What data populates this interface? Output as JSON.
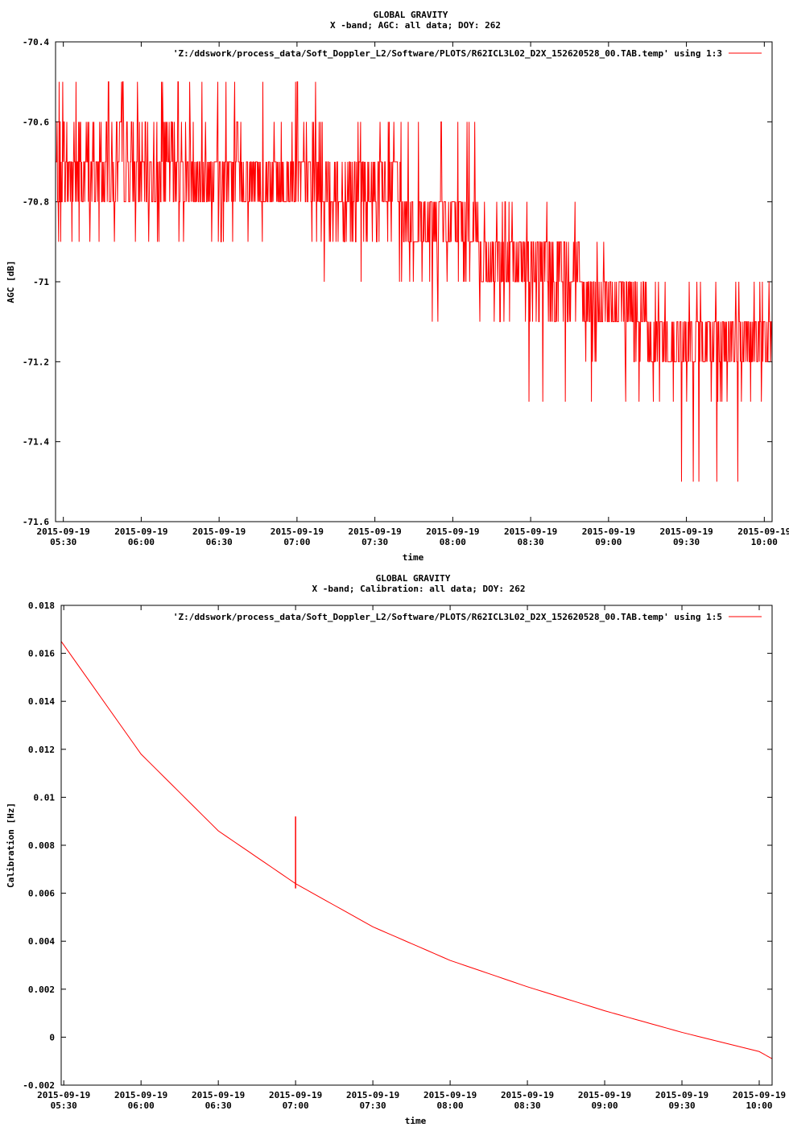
{
  "colors": {
    "series": "#ff0000",
    "axis": "#000000",
    "background": "#ffffff"
  },
  "chart_data": [
    {
      "type": "line",
      "title": "GLOBAL GRAVITY",
      "subtitle": "X -band; AGC: all data; DOY: 262",
      "xlabel": "time",
      "ylabel": "AGC [dB]",
      "ylim": [
        -71.6,
        -70.4
      ],
      "yticks": [
        "-70.4",
        "-70.6",
        "-70.8",
        "-71",
        "-71.2",
        "-71.4",
        "-71.6"
      ],
      "ytick_values": [
        -70.4,
        -70.6,
        -70.8,
        -71.0,
        -71.2,
        -71.4,
        -71.6
      ],
      "xlim": [
        "2015-09-19 05:27",
        "2015-09-19 10:03"
      ],
      "xticks": [
        [
          "2015-09-19",
          "05:30"
        ],
        [
          "2015-09-19",
          "06:00"
        ],
        [
          "2015-09-19",
          "06:30"
        ],
        [
          "2015-09-19",
          "07:00"
        ],
        [
          "2015-09-19",
          "07:30"
        ],
        [
          "2015-09-19",
          "08:00"
        ],
        [
          "2015-09-19",
          "08:30"
        ],
        [
          "2015-09-19",
          "09:00"
        ],
        [
          "2015-09-19",
          "09:30"
        ],
        [
          "2015-09-19",
          "10:00"
        ]
      ],
      "xtick_times": [
        "05:30",
        "06:00",
        "06:30",
        "07:00",
        "07:30",
        "08:00",
        "08:30",
        "09:00",
        "09:30",
        "10:00"
      ],
      "grid": false,
      "legend": "top-right",
      "series": [
        {
          "name": "'Z:/ddswork/process_data/Soft_Doppler_L2/Software/PLOTS/R62ICL3L02_D2X_152620528_00.TAB.temp' using 1:3",
          "x_start": "05:27",
          "x_end": "10:03",
          "trend_segments": [
            {
              "from": "05:27",
              "to": "06:30",
              "mean": -70.72,
              "min": -70.9,
              "max": -70.5
            },
            {
              "from": "06:30",
              "to": "07:10",
              "mean": -70.74,
              "min": -70.9,
              "max": -70.5
            },
            {
              "from": "07:10",
              "to": "07:40",
              "mean": -70.78,
              "min": -71.0,
              "max": -70.6
            },
            {
              "from": "07:40",
              "to": "08:10",
              "mean": -70.86,
              "min": -71.1,
              "max": -70.6
            },
            {
              "from": "08:10",
              "to": "08:50",
              "mean": -70.98,
              "min": -71.3,
              "max": -70.8
            },
            {
              "from": "08:50",
              "to": "09:15",
              "mean": -71.06,
              "min": -71.3,
              "max": -70.9
            },
            {
              "from": "09:15",
              "to": "10:03",
              "mean": -71.15,
              "min": -71.5,
              "max": -71.0
            }
          ]
        }
      ]
    },
    {
      "type": "line",
      "title": "GLOBAL GRAVITY",
      "subtitle": "X -band; Calibration: all data; DOY: 262",
      "xlabel": "time",
      "ylabel": "Calibration [Hz]",
      "ylim": [
        -0.002,
        0.018
      ],
      "yticks": [
        "0.018",
        "0.016",
        "0.014",
        "0.012",
        "0.01",
        "0.008",
        "0.006",
        "0.004",
        "0.002",
        "0",
        "-0.002"
      ],
      "ytick_values": [
        0.018,
        0.016,
        0.014,
        0.012,
        0.01,
        0.008,
        0.006,
        0.004,
        0.002,
        0,
        -0.002
      ],
      "xlim": [
        "2015-09-19 05:29",
        "2015-09-19 10:05"
      ],
      "xticks": [
        [
          "2015-09-19",
          "05:30"
        ],
        [
          "2015-09-19",
          "06:00"
        ],
        [
          "2015-09-19",
          "06:30"
        ],
        [
          "2015-09-19",
          "07:00"
        ],
        [
          "2015-09-19",
          "07:30"
        ],
        [
          "2015-09-19",
          "08:00"
        ],
        [
          "2015-09-19",
          "08:30"
        ],
        [
          "2015-09-19",
          "09:00"
        ],
        [
          "2015-09-19",
          "09:30"
        ],
        [
          "2015-09-19",
          "10:00"
        ]
      ],
      "xtick_times": [
        "05:30",
        "06:00",
        "06:30",
        "07:00",
        "07:30",
        "08:00",
        "08:30",
        "09:00",
        "09:30",
        "10:00"
      ],
      "grid": false,
      "legend": "top-right",
      "series": [
        {
          "name": "'Z:/ddswork/process_data/Soft_Doppler_L2/Software/PLOTS/R62ICL3L02_D2X_152620528_00.TAB.temp' using 1:5",
          "x": [
            "05:29",
            "06:00",
            "06:30",
            "07:00",
            "07:30",
            "08:00",
            "08:30",
            "09:00",
            "09:30",
            "10:00",
            "10:05"
          ],
          "y": [
            0.0165,
            0.0118,
            0.0086,
            0.0064,
            0.0046,
            0.0032,
            0.0021,
            0.0011,
            0.0002,
            -0.0006,
            -0.0009
          ],
          "spike": {
            "x": "07:00",
            "base": 0.0062,
            "peak": 0.0092
          }
        }
      ]
    }
  ]
}
